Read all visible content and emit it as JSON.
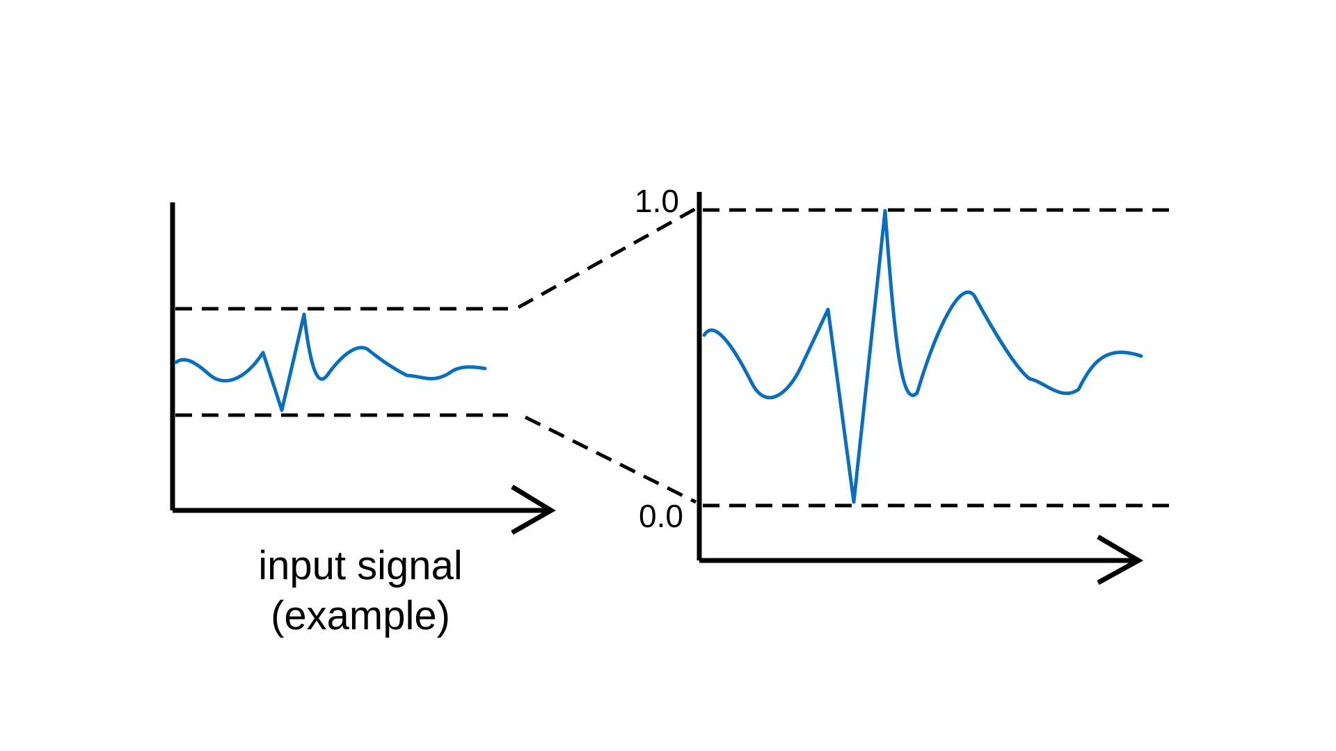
{
  "diagram": {
    "caption_line1": "input signal",
    "caption_line2": "(example)",
    "label_top": "1.0",
    "label_bottom": "0.0",
    "signal_color": "#0a6ebd",
    "line_color": "#000000"
  }
}
